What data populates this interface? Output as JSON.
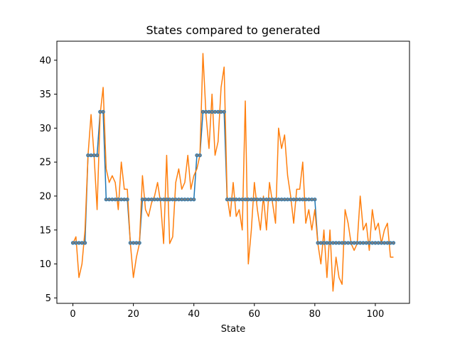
{
  "chart_data": {
    "type": "line",
    "title": "States compared to generated",
    "xlabel": "State",
    "ylabel": "",
    "xlim": [
      -5.3,
      111.3
    ],
    "ylim": [
      4.2,
      42.8
    ],
    "xticks": [
      0,
      20,
      40,
      60,
      80,
      100
    ],
    "yticks": [
      5,
      10,
      15,
      20,
      25,
      30,
      35,
      40
    ],
    "grid": false,
    "series": [
      {
        "color": "#1f77b4",
        "marker": "circle",
        "values": [
          13.1,
          13.1,
          13.1,
          13.1,
          13.1,
          26.0,
          26.0,
          26.0,
          26.0,
          32.4,
          32.4,
          19.5,
          19.5,
          19.5,
          19.5,
          19.5,
          19.5,
          19.5,
          19.5,
          13.1,
          13.1,
          13.1,
          13.1,
          19.5,
          19.5,
          19.5,
          19.5,
          19.5,
          19.5,
          19.5,
          19.5,
          19.5,
          19.5,
          19.5,
          19.5,
          19.5,
          19.5,
          19.5,
          19.5,
          19.5,
          19.5,
          26.0,
          26.0,
          32.4,
          32.4,
          32.4,
          32.4,
          32.4,
          32.4,
          32.4,
          32.4,
          19.5,
          19.5,
          19.5,
          19.5,
          19.5,
          19.5,
          19.5,
          19.5,
          19.5,
          19.5,
          19.5,
          19.5,
          19.5,
          19.5,
          19.5,
          19.5,
          19.5,
          19.5,
          19.5,
          19.5,
          19.5,
          19.5,
          19.5,
          19.5,
          19.5,
          19.5,
          19.5,
          19.5,
          19.5,
          19.5,
          13.1,
          13.1,
          13.1,
          13.1,
          13.1,
          13.1,
          13.1,
          13.1,
          13.1,
          13.1,
          13.1,
          13.1,
          13.1,
          13.1,
          13.1,
          13.1,
          13.1,
          13.1,
          13.1,
          13.1,
          13.1,
          13.1,
          13.1,
          13.1,
          13.1,
          13.1
        ]
      },
      {
        "color": "#ff7f0e",
        "marker": "none",
        "values": [
          13,
          14,
          8,
          10,
          15,
          26,
          32,
          26,
          18,
          32,
          36,
          24,
          22,
          23,
          22,
          18,
          25,
          21,
          21,
          13,
          8,
          11,
          13,
          23,
          18,
          17,
          19,
          20,
          22,
          19,
          13,
          26,
          13,
          14,
          22,
          24,
          21,
          22,
          26,
          21,
          23,
          24,
          26,
          41,
          32,
          27,
          35,
          26,
          28,
          36,
          39,
          20,
          17,
          22,
          17,
          18,
          15,
          34,
          10,
          15,
          22,
          18,
          15,
          20,
          15,
          22,
          19,
          16,
          30,
          27,
          29,
          23,
          20,
          16,
          21,
          21,
          25,
          16,
          18,
          15,
          18,
          13,
          10,
          15,
          8,
          15,
          6,
          11,
          8,
          7,
          18,
          16,
          13,
          12,
          13,
          20,
          15,
          16,
          12,
          18,
          15,
          16,
          13,
          15,
          16,
          11,
          11
        ]
      }
    ]
  }
}
